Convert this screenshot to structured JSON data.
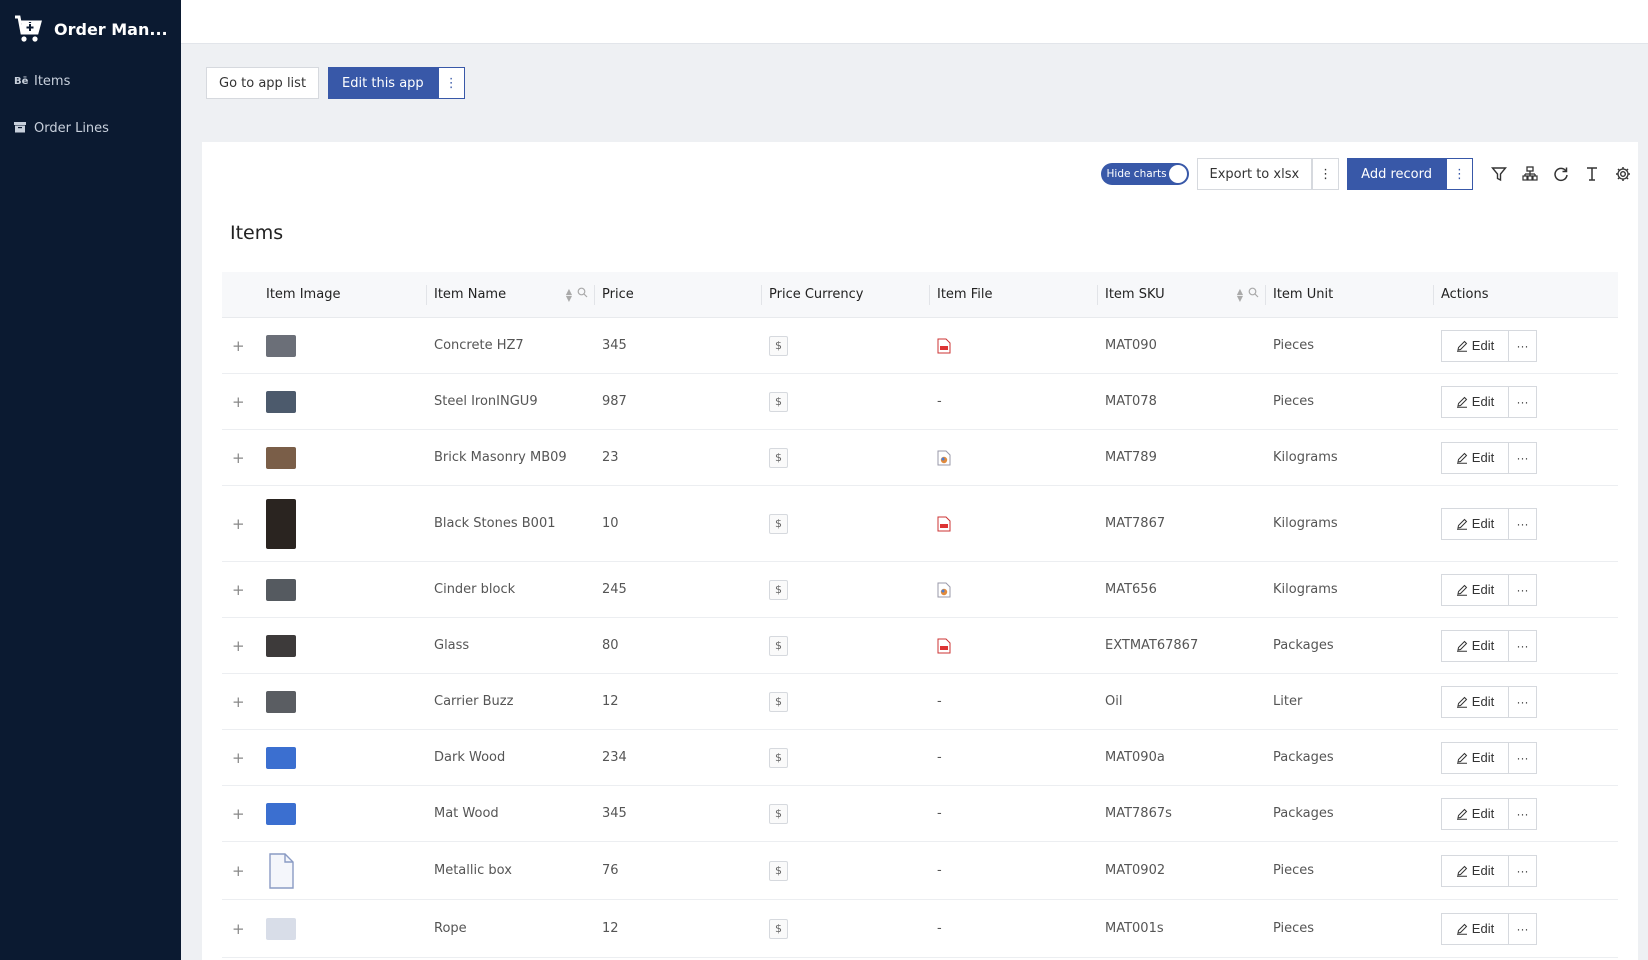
{
  "app": {
    "title": "Order Man..."
  },
  "sidebar": {
    "items": [
      {
        "label": "Items",
        "icon": "behance-icon"
      },
      {
        "label": "Order Lines",
        "icon": "archive-icon"
      }
    ]
  },
  "app_actions": {
    "go_to_app_list": "Go to app list",
    "edit_this_app": "Edit this app"
  },
  "card": {
    "title": "Items",
    "toggle_label": "Hide charts",
    "export_label": "Export to xlsx",
    "add_record_label": "Add record"
  },
  "table": {
    "columns": [
      "Item Image",
      "Item Name",
      "Price",
      "Price Currency",
      "Item File",
      "Item SKU",
      "Item Unit",
      "Actions"
    ],
    "currency_symbol": "$",
    "edit_label": "Edit",
    "more_label": "···",
    "expand_label": "+",
    "rows": [
      {
        "name": "Concrete HZ7",
        "price": "345",
        "file": "pdf",
        "sku": "MAT090",
        "unit": "Pieces",
        "thumb": "#6b6f78",
        "tall": false
      },
      {
        "name": "Steel IronINGU9",
        "price": "987",
        "file": "-",
        "sku": "MAT078",
        "unit": "Pieces",
        "thumb": "#4c5a6c",
        "tall": false
      },
      {
        "name": "Brick Masonry MB09",
        "price": "23",
        "file": "image",
        "sku": "MAT789",
        "unit": "Kilograms",
        "thumb": "#7a5e48",
        "tall": false
      },
      {
        "name": "Black Stones B001",
        "price": "10",
        "file": "pdf",
        "sku": "MAT7867",
        "unit": "Kilograms",
        "thumb": "#2a2420",
        "tall": true
      },
      {
        "name": "Cinder block",
        "price": "245",
        "file": "image",
        "sku": "MAT656",
        "unit": "Kilograms",
        "thumb": "#555a60",
        "tall": false
      },
      {
        "name": "Glass",
        "price": "80",
        "file": "pdf",
        "sku": "EXTMAT67867",
        "unit": "Packages",
        "thumb": "#3d3a3a",
        "tall": false
      },
      {
        "name": "Carrier Buzz",
        "price": "12",
        "file": "-",
        "sku": "Oil",
        "unit": "Liter",
        "thumb": "#5a5d62",
        "tall": false
      },
      {
        "name": "Dark Wood",
        "price": "234",
        "file": "-",
        "sku": "MAT090a",
        "unit": "Packages",
        "thumb": "#3b6fd0",
        "tall": false
      },
      {
        "name": "Mat Wood",
        "price": "345",
        "file": "-",
        "sku": "MAT7867s",
        "unit": "Packages",
        "thumb": "#3b6fd0",
        "tall": false
      },
      {
        "name": "Metallic box",
        "price": "76",
        "file": "-",
        "sku": "MAT0902",
        "unit": "Pieces",
        "thumb": "doc",
        "tall": false
      },
      {
        "name": "Rope",
        "price": "12",
        "file": "-",
        "sku": "MAT001s",
        "unit": "Pieces",
        "thumb": "#d8dde8",
        "tall": false
      }
    ]
  },
  "colors": {
    "sidebar_bg": "#0b1a31",
    "primary": "#3858a8",
    "page_bg": "#eef0f3"
  }
}
